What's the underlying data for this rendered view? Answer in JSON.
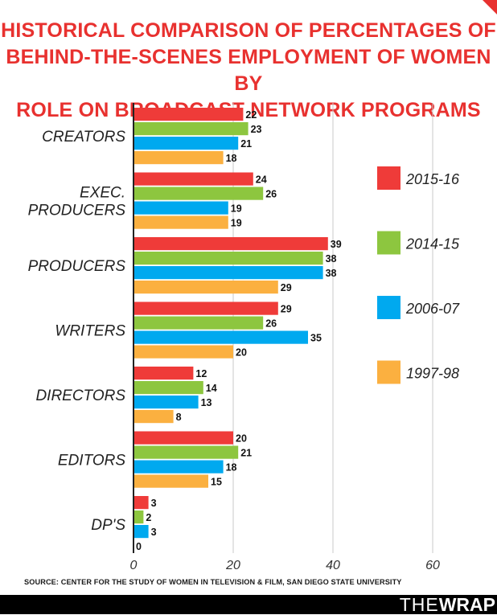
{
  "title_lines": [
    "HISTORICAL COMPARISON OF PERCENTAGES OF",
    "BEHIND-THE-SCENES EMPLOYMENT OF WOMEN BY",
    "ROLE ON BROADCAST NETWORK PROGRAMS"
  ],
  "source": "SOURCE: CENTER FOR THE STUDY OF WOMEN IN TELEVISION & FILM, SAN DIEGO STATE UNIVERSITY",
  "brand": {
    "the": "THE",
    "wrap": "WRAP"
  },
  "chart_data": {
    "type": "bar",
    "orientation": "horizontal",
    "categories": [
      [
        "CREATORS"
      ],
      [
        "EXEC.",
        "PRODUCERS"
      ],
      [
        "PRODUCERS"
      ],
      [
        "WRITERS"
      ],
      [
        "DIRECTORS"
      ],
      [
        "EDITORS"
      ],
      [
        "DP'S"
      ]
    ],
    "series": [
      {
        "name": "2015-16",
        "color": "#ef3b39",
        "values": [
          22,
          24,
          39,
          29,
          12,
          20,
          3
        ]
      },
      {
        "name": "2014-15",
        "color": "#8dc63f",
        "values": [
          23,
          26,
          38,
          26,
          14,
          21,
          2
        ]
      },
      {
        "name": "2006-07",
        "color": "#00a9ef",
        "values": [
          21,
          19,
          38,
          35,
          13,
          18,
          3
        ]
      },
      {
        "name": "1997-98",
        "color": "#fbb040",
        "values": [
          18,
          19,
          29,
          20,
          8,
          15,
          0
        ]
      }
    ],
    "xlim": [
      0,
      60
    ],
    "xticks": [
      0,
      20,
      40,
      60
    ],
    "grid": true,
    "legend_position": "right"
  }
}
